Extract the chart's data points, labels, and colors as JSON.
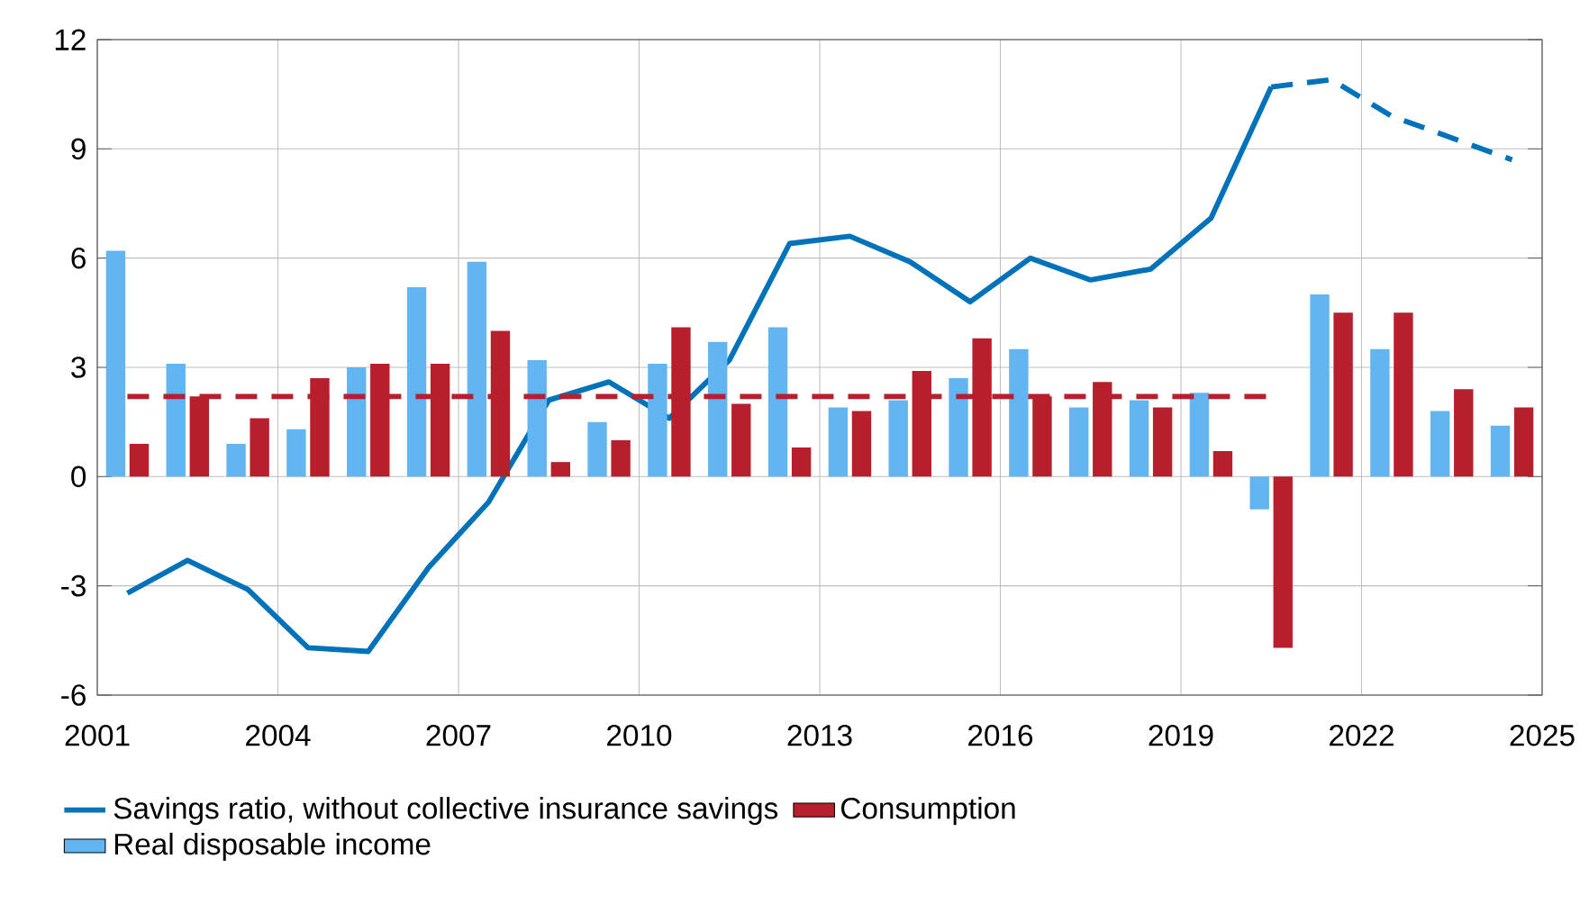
{
  "chart_data": {
    "type": "bar",
    "x": [
      2001.5,
      2002.5,
      2003.5,
      2004.5,
      2005.5,
      2006.5,
      2007.5,
      2008.5,
      2009.5,
      2010.5,
      2011.5,
      2012.5,
      2013.5,
      2014.5,
      2015.5,
      2016.5,
      2017.5,
      2018.5,
      2019.5,
      2020.5,
      2021.5,
      2022.5,
      2023.5,
      2024.5
    ],
    "series": [
      {
        "name": "Savings ratio, without collective insurance savings",
        "type": "line",
        "color": "#0072b9",
        "line_style": "solid",
        "x": [
          2001.5,
          2002.5,
          2003.5,
          2004.5,
          2005.5,
          2006.5,
          2007.5,
          2008.5,
          2009.5,
          2010.5,
          2011.5,
          2012.5,
          2013.5,
          2014.5,
          2015.5,
          2016.5,
          2017.5,
          2018.5,
          2019.5,
          2020.5
        ],
        "values": [
          -3.2,
          -2.3,
          -3.1,
          -4.7,
          -4.8,
          -2.5,
          -0.7,
          2.1,
          2.6,
          1.6,
          3.2,
          6.4,
          6.6,
          5.9,
          4.8,
          6.0,
          5.4,
          5.7,
          7.1,
          10.7
        ]
      },
      {
        "name": "Consumption",
        "color": "#b61f2b",
        "values": [
          0.9,
          2.2,
          1.6,
          2.7,
          3.1,
          3.1,
          4.0,
          0.4,
          1.0,
          4.1,
          2.0,
          0.8,
          1.8,
          2.9,
          3.8,
          2.2,
          2.6,
          1.9,
          0.7,
          -4.7,
          4.5,
          4.5,
          2.4,
          1.9
        ]
      },
      {
        "name": "Real disposable income",
        "color": "#62b5f0",
        "values": [
          6.2,
          3.1,
          0.9,
          1.3,
          3.0,
          5.2,
          5.9,
          3.2,
          1.5,
          3.1,
          3.7,
          4.1,
          1.9,
          2.1,
          2.7,
          3.5,
          1.9,
          2.1,
          2.3,
          -0.9,
          5.0,
          3.5,
          1.8,
          1.4
        ]
      },
      {
        "type": "line",
        "color": "#0072b9",
        "line_style": "dashed",
        "x": [
          2020.5,
          2021.5,
          2022.5,
          2023.5,
          2024.5
        ],
        "values": [
          10.7,
          10.9,
          9.9,
          9.3,
          8.7
        ]
      },
      {
        "type": "line",
        "color": "#b61f2b",
        "line_style": "dashed",
        "x": [
          2001.5,
          2020.5
        ],
        "values": [
          2.2,
          2.2
        ]
      }
    ],
    "xlim": [
      2001,
      2025
    ],
    "xticks": [
      2001,
      2004,
      2007,
      2010,
      2013,
      2016,
      2019,
      2022,
      2025
    ],
    "ylim": [
      -6,
      12
    ],
    "yticks": [
      -6,
      -3,
      0,
      3,
      6,
      9,
      12
    ],
    "grid": true,
    "legend": "bottom"
  }
}
